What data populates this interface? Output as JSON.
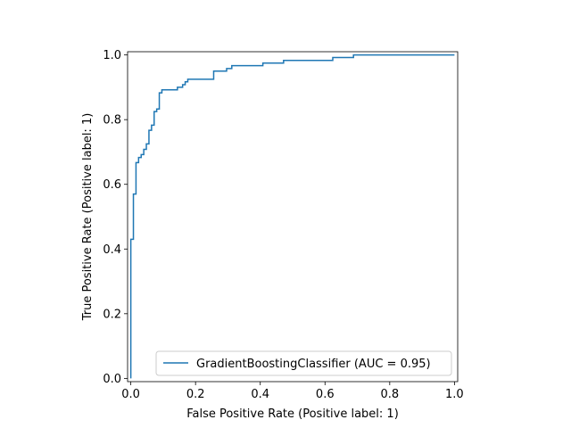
{
  "chart_data": {
    "type": "line",
    "xlabel": "False Positive Rate (Positive label: 1)",
    "ylabel": "True Positive Rate (Positive label: 1)",
    "xlim": [
      -0.01,
      1.01
    ],
    "ylim": [
      -0.01,
      1.01
    ],
    "xticks": [
      "0.0",
      "0.2",
      "0.4",
      "0.6",
      "0.8",
      "1.0"
    ],
    "yticks": [
      "0.0",
      "0.2",
      "0.4",
      "0.6",
      "0.8",
      "1.0"
    ],
    "grid": false,
    "legend_position": "lower-right",
    "series": [
      {
        "name": "GradientBoostingClassifier (AUC = 0.95)",
        "color": "#1f77b4",
        "x": [
          0.0,
          0.0,
          0.0,
          0.0,
          0.008,
          0.008,
          0.016,
          0.016,
          0.024,
          0.024,
          0.032,
          0.032,
          0.04,
          0.04,
          0.048,
          0.048,
          0.056,
          0.056,
          0.064,
          0.064,
          0.072,
          0.072,
          0.08,
          0.08,
          0.088,
          0.088,
          0.096,
          0.096,
          0.104,
          0.104,
          0.144,
          0.144,
          0.16,
          0.16,
          0.168,
          0.168,
          0.176,
          0.176,
          0.256,
          0.256,
          0.296,
          0.296,
          0.312,
          0.312,
          0.408,
          0.408,
          0.472,
          0.472,
          0.624,
          0.624,
          0.688,
          0.688,
          1.0
        ],
        "y": [
          0.0,
          0.0,
          0.0,
          0.43,
          0.43,
          0.57,
          0.57,
          0.667,
          0.667,
          0.683,
          0.683,
          0.692,
          0.692,
          0.708,
          0.708,
          0.725,
          0.725,
          0.767,
          0.767,
          0.783,
          0.783,
          0.825,
          0.825,
          0.833,
          0.833,
          0.883,
          0.883,
          0.892,
          0.892,
          0.892,
          0.892,
          0.9,
          0.9,
          0.908,
          0.908,
          0.917,
          0.917,
          0.925,
          0.925,
          0.95,
          0.95,
          0.958,
          0.958,
          0.967,
          0.967,
          0.975,
          0.975,
          0.983,
          0.983,
          0.992,
          0.992,
          1.0,
          1.0
        ]
      }
    ]
  }
}
